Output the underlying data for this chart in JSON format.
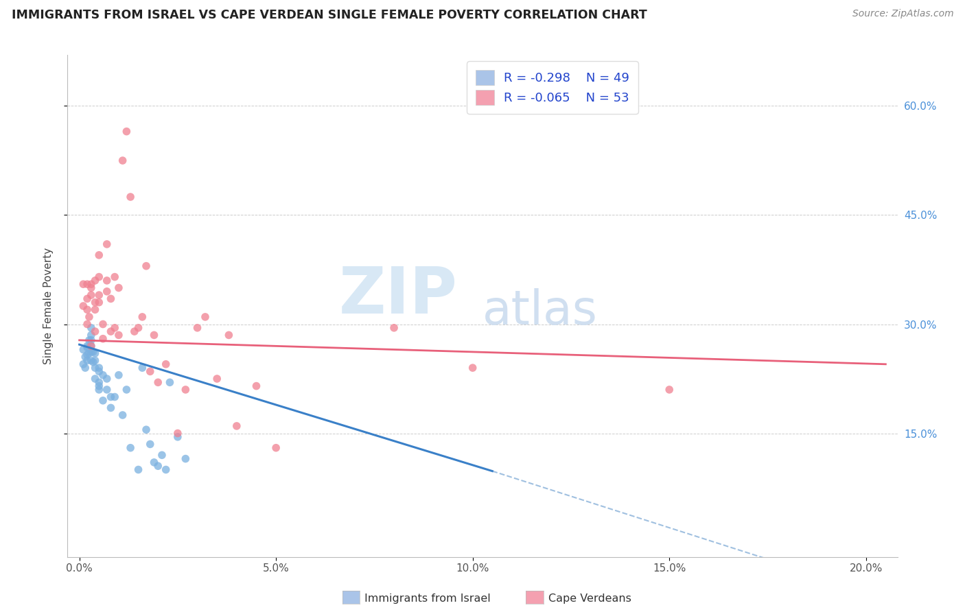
{
  "title": "IMMIGRANTS FROM ISRAEL VS CAPE VERDEAN SINGLE FEMALE POVERTY CORRELATION CHART",
  "source": "Source: ZipAtlas.com",
  "ylabel": "Single Female Poverty",
  "ytick_vals": [
    0.15,
    0.3,
    0.45,
    0.6
  ],
  "ytick_labels": [
    "15.0%",
    "30.0%",
    "45.0%",
    "60.0%"
  ],
  "xtick_vals": [
    0.0,
    0.05,
    0.1,
    0.15,
    0.2
  ],
  "xtick_labels": [
    "0.0%",
    "5.0%",
    "10.0%",
    "15.0%",
    "20.0%"
  ],
  "xlim": [
    -0.003,
    0.208
  ],
  "ylim": [
    -0.02,
    0.67
  ],
  "legend_entry1": {
    "R": "-0.298",
    "N": "49",
    "color": "#aac4e8"
  },
  "legend_entry2": {
    "R": "-0.065",
    "N": "53",
    "color": "#f4a0b0"
  },
  "israel_color": "#7ab0e0",
  "cape_color": "#f08090",
  "trendline_israel_color": "#3a80c8",
  "trendline_cape_color": "#e8607a",
  "trendline_ext_color": "#a0c0e0",
  "watermark_zip": "ZIP",
  "watermark_atlas": "atlas",
  "legend_bottom_label1": "Immigrants from Israel",
  "legend_bottom_label2": "Cape Verdeans",
  "israel_x": [
    0.001,
    0.001,
    0.0015,
    0.0015,
    0.002,
    0.002,
    0.002,
    0.002,
    0.0025,
    0.0025,
    0.003,
    0.003,
    0.003,
    0.003,
    0.003,
    0.003,
    0.0035,
    0.0035,
    0.004,
    0.004,
    0.004,
    0.004,
    0.005,
    0.005,
    0.005,
    0.005,
    0.005,
    0.006,
    0.006,
    0.007,
    0.007,
    0.008,
    0.008,
    0.009,
    0.01,
    0.011,
    0.012,
    0.013,
    0.015,
    0.016,
    0.017,
    0.018,
    0.019,
    0.02,
    0.021,
    0.022,
    0.023,
    0.025,
    0.027
  ],
  "israel_y": [
    0.245,
    0.265,
    0.255,
    0.24,
    0.268,
    0.258,
    0.25,
    0.27,
    0.26,
    0.278,
    0.25,
    0.262,
    0.285,
    0.295,
    0.278,
    0.27,
    0.262,
    0.248,
    0.26,
    0.24,
    0.225,
    0.25,
    0.22,
    0.235,
    0.215,
    0.24,
    0.21,
    0.23,
    0.195,
    0.21,
    0.225,
    0.2,
    0.185,
    0.2,
    0.23,
    0.175,
    0.21,
    0.13,
    0.1,
    0.24,
    0.155,
    0.135,
    0.11,
    0.105,
    0.12,
    0.1,
    0.22,
    0.145,
    0.115
  ],
  "cape_x": [
    0.001,
    0.001,
    0.002,
    0.002,
    0.002,
    0.002,
    0.0025,
    0.003,
    0.003,
    0.003,
    0.003,
    0.004,
    0.004,
    0.004,
    0.004,
    0.005,
    0.005,
    0.005,
    0.005,
    0.006,
    0.006,
    0.007,
    0.007,
    0.007,
    0.008,
    0.008,
    0.009,
    0.009,
    0.01,
    0.01,
    0.011,
    0.012,
    0.013,
    0.014,
    0.015,
    0.016,
    0.017,
    0.018,
    0.019,
    0.02,
    0.022,
    0.025,
    0.027,
    0.03,
    0.032,
    0.035,
    0.038,
    0.04,
    0.045,
    0.05,
    0.08,
    0.1,
    0.15
  ],
  "cape_y": [
    0.325,
    0.355,
    0.32,
    0.3,
    0.355,
    0.335,
    0.31,
    0.35,
    0.27,
    0.355,
    0.34,
    0.29,
    0.33,
    0.36,
    0.32,
    0.365,
    0.34,
    0.395,
    0.33,
    0.28,
    0.3,
    0.345,
    0.36,
    0.41,
    0.29,
    0.335,
    0.295,
    0.365,
    0.285,
    0.35,
    0.525,
    0.565,
    0.475,
    0.29,
    0.295,
    0.31,
    0.38,
    0.235,
    0.285,
    0.22,
    0.245,
    0.15,
    0.21,
    0.295,
    0.31,
    0.225,
    0.285,
    0.16,
    0.215,
    0.13,
    0.295,
    0.24,
    0.21
  ]
}
